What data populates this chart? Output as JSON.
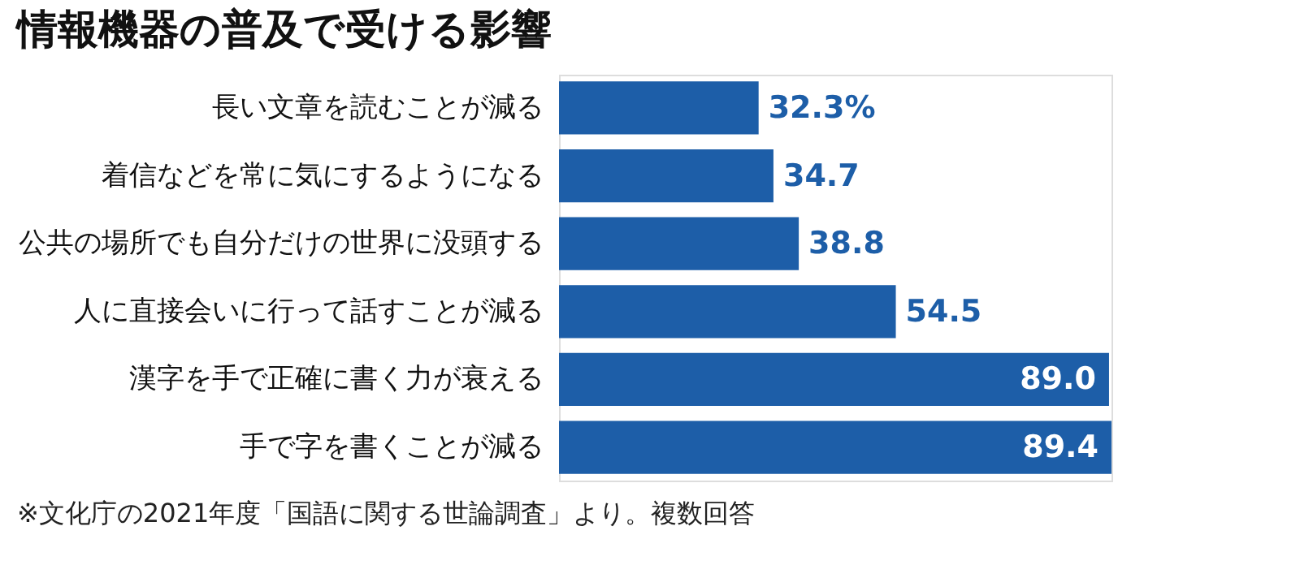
{
  "chart_data": {
    "type": "bar",
    "orientation": "horizontal",
    "title": "情報機器の普及で受ける影響",
    "categories": [
      "長い文章を読むことが減る",
      "着信などを常に気にするようになる",
      "公共の場所でも自分だけの世界に没頭する",
      "人に直接会いに行って話すことが減る",
      "漢字を手で正確に書く力が衰える",
      "手で字を書くことが減る"
    ],
    "values": [
      32.3,
      34.7,
      38.8,
      54.5,
      89.0,
      89.4
    ],
    "value_labels": [
      "32.3%",
      "34.7",
      "38.8",
      "54.5",
      "89.0",
      "89.4"
    ],
    "color": "#1d5ea8",
    "annotations": [
      "※文化庁の2021年度「国語に関する世論調査」より。複数回答"
    ]
  }
}
